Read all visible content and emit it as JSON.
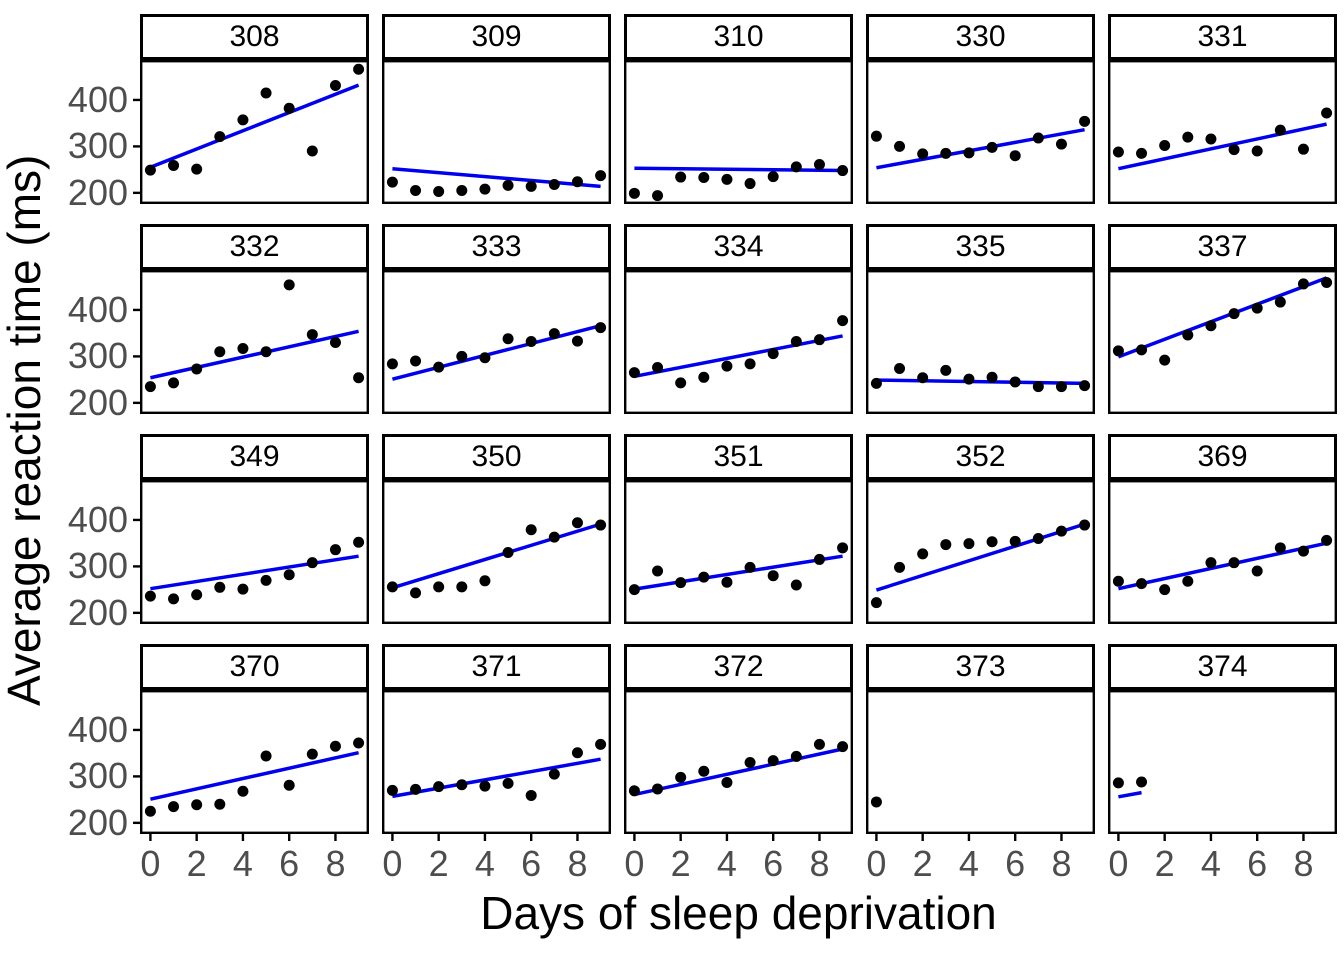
{
  "y_axis": {
    "title": "Average reaction time (ms)",
    "tick_labels": [
      "400",
      "300",
      "200"
    ],
    "tick_color": "#4D4D4D"
  },
  "x_axis": {
    "title": "Days of sleep deprivation",
    "tick_labels": [
      "0",
      "2",
      "4",
      "6",
      "8"
    ],
    "tick_color": "#4D4D4D"
  },
  "chart_data": {
    "type": "scatter",
    "title": "",
    "xlabel": "Days of sleep deprivation",
    "ylabel": "Average reaction time (ms)",
    "x_domain": [
      -0.45,
      9.45
    ],
    "y_domain": [
      176,
      486
    ],
    "x_ticks": [
      0,
      2,
      4,
      6,
      8
    ],
    "y_ticks": [
      400,
      300,
      200
    ],
    "grid": false,
    "legend": "none",
    "point_color": "#000000",
    "line_color": "#0000EE",
    "panel_border_color": "#000000",
    "facets": [
      {
        "label": "308",
        "x": [
          0,
          1,
          2,
          3,
          4,
          5,
          6,
          7,
          8,
          9
        ],
        "y": [
          249,
          259,
          251,
          321,
          357,
          415,
          382,
          290,
          431,
          466
        ],
        "line": {
          "x": [
            0,
            9
          ],
          "y": [
            255,
            432
          ]
        }
      },
      {
        "label": "309",
        "x": [
          0,
          1,
          2,
          3,
          4,
          5,
          6,
          7,
          8,
          9
        ],
        "y": [
          223,
          205,
          203,
          205,
          208,
          216,
          214,
          218,
          224,
          237
        ],
        "line": {
          "x": [
            0,
            9
          ],
          "y": [
            252,
            214
          ]
        }
      },
      {
        "label": "310",
        "x": [
          0,
          1,
          2,
          3,
          4,
          5,
          6,
          7,
          8,
          9
        ],
        "y": [
          199,
          194,
          234,
          233,
          229,
          220,
          235,
          256,
          261,
          248
        ],
        "line": {
          "x": [
            0,
            9
          ],
          "y": [
            253,
            248
          ]
        }
      },
      {
        "label": "330",
        "x": [
          0,
          1,
          2,
          3,
          4,
          5,
          6,
          7,
          8,
          9
        ],
        "y": [
          322,
          300,
          284,
          285,
          286,
          298,
          280,
          318,
          305,
          354
        ],
        "line": {
          "x": [
            0,
            9
          ],
          "y": [
            254,
            336
          ]
        }
      },
      {
        "label": "331",
        "x": [
          0,
          1,
          2,
          3,
          4,
          5,
          6,
          7,
          8,
          9
        ],
        "y": [
          288,
          285,
          302,
          320,
          316,
          293,
          290,
          335,
          294,
          372
        ],
        "line": {
          "x": [
            0,
            9
          ],
          "y": [
            252,
            348
          ]
        }
      },
      {
        "label": "332",
        "x": [
          0,
          1,
          2,
          3,
          4,
          5,
          6,
          7,
          8,
          9
        ],
        "y": [
          235,
          243,
          273,
          310,
          317,
          310,
          454,
          347,
          330,
          254
        ],
        "line": {
          "x": [
            0,
            9
          ],
          "y": [
            254,
            354
          ]
        }
      },
      {
        "label": "333",
        "x": [
          0,
          1,
          2,
          3,
          4,
          5,
          6,
          7,
          8,
          9
        ],
        "y": [
          284,
          290,
          277,
          300,
          297,
          338,
          332,
          349,
          333,
          362
        ],
        "line": {
          "x": [
            0,
            9
          ],
          "y": [
            251,
            366
          ]
        }
      },
      {
        "label": "334",
        "x": [
          0,
          1,
          2,
          3,
          4,
          5,
          6,
          7,
          8,
          9
        ],
        "y": [
          265,
          276,
          243,
          255,
          279,
          284,
          306,
          332,
          336,
          377
        ],
        "line": {
          "x": [
            0,
            9
          ],
          "y": [
            257,
            344
          ]
        }
      },
      {
        "label": "335",
        "x": [
          0,
          1,
          2,
          3,
          4,
          5,
          6,
          7,
          8,
          9
        ],
        "y": [
          242,
          274,
          254,
          270,
          251,
          255,
          245,
          235,
          235,
          237
        ],
        "line": {
          "x": [
            0,
            9
          ],
          "y": [
            249,
            242
          ]
        }
      },
      {
        "label": "337",
        "x": [
          0,
          1,
          2,
          3,
          4,
          5,
          6,
          7,
          8,
          9
        ],
        "y": [
          312,
          314,
          292,
          346,
          366,
          392,
          404,
          417,
          456,
          459
        ],
        "line": {
          "x": [
            0,
            9
          ],
          "y": [
            299,
            469
          ]
        }
      },
      {
        "label": "349",
        "x": [
          0,
          1,
          2,
          3,
          4,
          5,
          6,
          7,
          8,
          9
        ],
        "y": [
          236,
          230,
          239,
          255,
          251,
          270,
          282,
          308,
          336,
          352
        ],
        "line": {
          "x": [
            0,
            9
          ],
          "y": [
            252,
            322
          ]
        }
      },
      {
        "label": "350",
        "x": [
          0,
          1,
          2,
          3,
          4,
          5,
          6,
          7,
          8,
          9
        ],
        "y": [
          256,
          243,
          256,
          256,
          269,
          330,
          379,
          363,
          394,
          389
        ],
        "line": {
          "x": [
            0,
            9
          ],
          "y": [
            254,
            391
          ]
        }
      },
      {
        "label": "351",
        "x": [
          0,
          1,
          2,
          3,
          4,
          5,
          6,
          7,
          8,
          9
        ],
        "y": [
          250,
          290,
          265,
          277,
          266,
          298,
          280,
          260,
          315,
          340
        ],
        "line": {
          "x": [
            0,
            9
          ],
          "y": [
            251,
            322
          ]
        }
      },
      {
        "label": "352",
        "x": [
          0,
          1,
          2,
          3,
          4,
          5,
          6,
          7,
          8,
          9
        ],
        "y": [
          222,
          298,
          327,
          347,
          349,
          353,
          354,
          360,
          376,
          389
        ],
        "line": {
          "x": [
            0,
            9
          ],
          "y": [
            249,
            391
          ]
        }
      },
      {
        "label": "369",
        "x": [
          0,
          1,
          2,
          3,
          4,
          5,
          6,
          7,
          8,
          9
        ],
        "y": [
          268,
          263,
          250,
          268,
          308,
          308,
          290,
          340,
          333,
          356
        ],
        "line": {
          "x": [
            0,
            9
          ],
          "y": [
            252,
            350
          ]
        }
      },
      {
        "label": "370",
        "x": [
          0,
          1,
          2,
          3,
          4,
          5,
          6,
          7,
          8,
          9
        ],
        "y": [
          225,
          235,
          239,
          240,
          268,
          344,
          281,
          348,
          365,
          372
        ],
        "line": {
          "x": [
            0,
            9
          ],
          "y": [
            251,
            351
          ]
        }
      },
      {
        "label": "371",
        "x": [
          0,
          1,
          2,
          3,
          4,
          5,
          6,
          7,
          8,
          9
        ],
        "y": [
          270,
          272,
          278,
          282,
          279,
          285,
          259,
          305,
          351,
          369
        ],
        "line": {
          "x": [
            0,
            9
          ],
          "y": [
            257,
            337
          ]
        }
      },
      {
        "label": "372",
        "x": [
          0,
          1,
          2,
          3,
          4,
          5,
          6,
          7,
          8,
          9
        ],
        "y": [
          269,
          273,
          298,
          311,
          287,
          330,
          334,
          343,
          369,
          364
        ],
        "line": {
          "x": [
            0,
            9
          ],
          "y": [
            261,
            359
          ]
        }
      },
      {
        "label": "373",
        "x": [
          0
        ],
        "y": [
          245
        ],
        "line": null
      },
      {
        "label": "374",
        "x": [
          0,
          1
        ],
        "y": [
          286,
          288
        ],
        "line": {
          "x": [
            0,
            1
          ],
          "y": [
            256,
            265
          ]
        }
      }
    ]
  }
}
